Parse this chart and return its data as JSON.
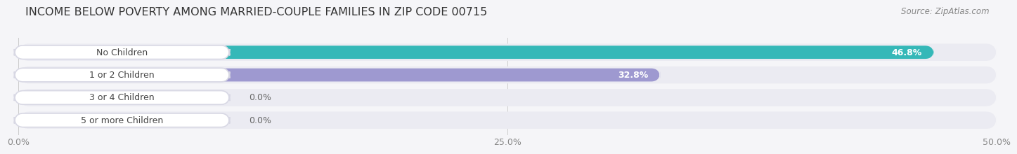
{
  "title": "INCOME BELOW POVERTY AMONG MARRIED-COUPLE FAMILIES IN ZIP CODE 00715",
  "source": "Source: ZipAtlas.com",
  "categories": [
    "No Children",
    "1 or 2 Children",
    "3 or 4 Children",
    "5 or more Children"
  ],
  "values": [
    46.8,
    32.8,
    0.0,
    0.0
  ],
  "bar_colors": [
    "#35b8b8",
    "#9e99d0",
    "#f49db0",
    "#f5ceA0"
  ],
  "xlim": [
    0,
    50.0
  ],
  "xticks": [
    0.0,
    25.0,
    50.0
  ],
  "xticklabels": [
    "0.0%",
    "25.0%",
    "50.0%"
  ],
  "background_color": "#f5f5f8",
  "bar_bg_color": "#e4e4ec",
  "row_bg_color": "#ebebf2",
  "title_fontsize": 11.5,
  "label_fontsize": 9,
  "value_fontsize": 9,
  "source_fontsize": 8.5
}
